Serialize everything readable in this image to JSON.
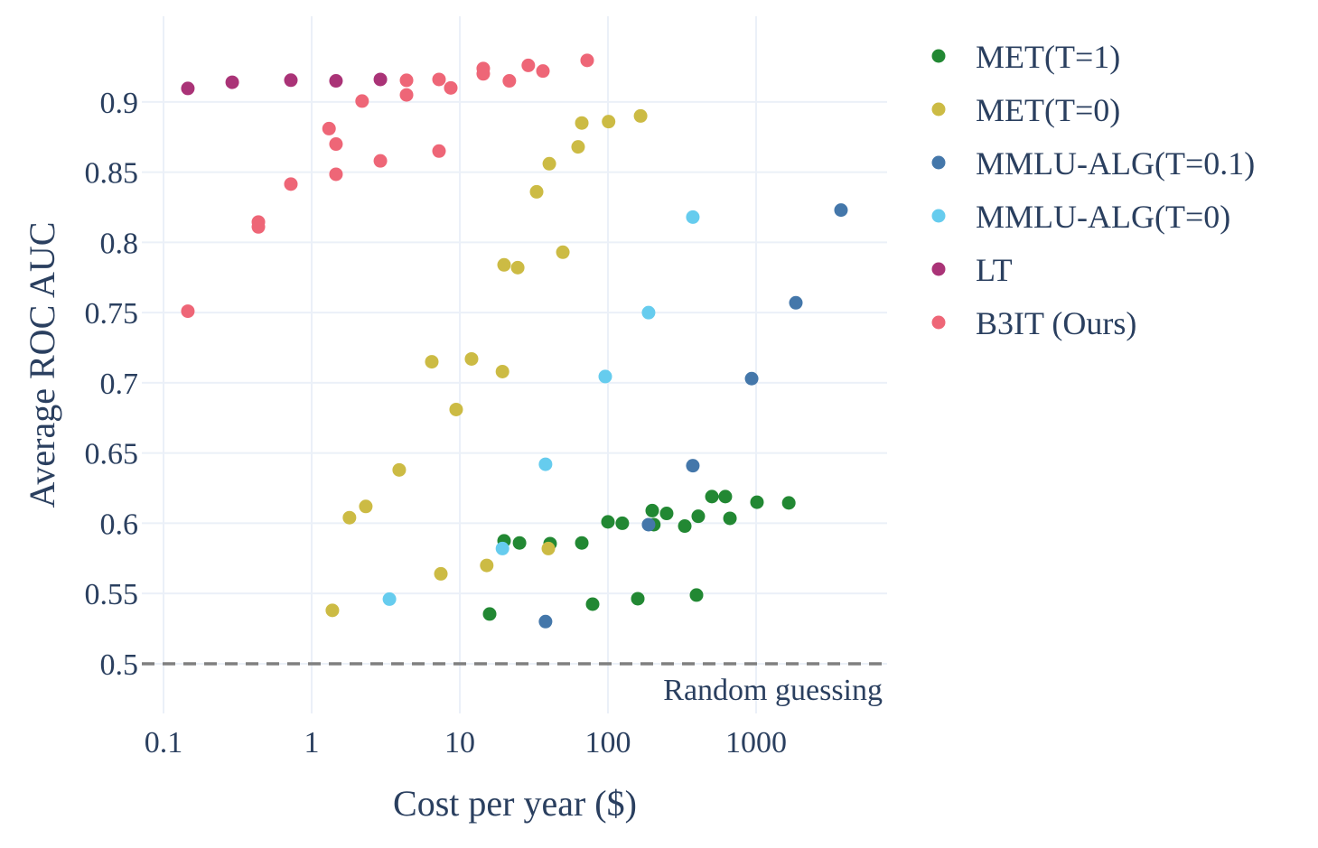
{
  "chart_data": {
    "type": "scatter",
    "title": "",
    "xlabel": "Cost per year ($)",
    "ylabel": "Average ROC AUC",
    "xscale": "log",
    "xlim": [
      0.0714,
      7660
    ],
    "ylim": [
      0.4646,
      0.961
    ],
    "x_ticks": [
      0.1,
      1,
      10,
      100,
      1000
    ],
    "x_tick_labels": [
      "0.1",
      "1",
      "10",
      "100",
      "1000"
    ],
    "y_ticks": [
      0.5,
      0.55,
      0.6,
      0.65,
      0.7,
      0.75,
      0.8,
      0.85,
      0.9
    ],
    "y_tick_labels": [
      "0.5",
      "0.55",
      "0.6",
      "0.65",
      "0.7",
      "0.75",
      "0.8",
      "0.85",
      "0.9"
    ],
    "grid": true,
    "legend_position": "right",
    "reference_line": {
      "y": 0.5,
      "style": "dashed",
      "color": "#808080",
      "label": "Random guessing"
    },
    "series": [
      {
        "name": "MET(T=1)",
        "color": "#228833",
        "x": [
          19.9,
          25.3,
          40.7,
          66.6,
          100,
          125,
          199,
          204,
          249,
          330,
          407,
          503,
          620,
          666,
          1014,
          1662,
          15.9,
          78.8,
          159,
          396
        ],
        "y": [
          0.5875,
          0.586,
          0.5855,
          0.586,
          0.601,
          0.6,
          0.609,
          0.599,
          0.607,
          0.598,
          0.605,
          0.619,
          0.619,
          0.6035,
          0.615,
          0.6145,
          0.5354,
          0.5424,
          0.5463,
          0.5489
        ]
      },
      {
        "name": "MET(T=0)",
        "color": "#CCBB44",
        "x": [
          1.38,
          1.8,
          2.32,
          3.9,
          6.47,
          7.45,
          9.45,
          12.0,
          15.2,
          19.4,
          19.9,
          24.6,
          33.0,
          39.6,
          40.2,
          49.6,
          62.9,
          66.6,
          101,
          166
        ],
        "y": [
          0.538,
          0.604,
          0.612,
          0.638,
          0.715,
          0.564,
          0.681,
          0.717,
          0.57,
          0.708,
          0.784,
          0.782,
          0.836,
          0.582,
          0.856,
          0.793,
          0.868,
          0.885,
          0.886,
          0.89
        ]
      },
      {
        "name": "MMLU-ALG(T=0.1)",
        "color": "#4477AA",
        "x": [
          37.9,
          188,
          374,
          933,
          1855,
          3742
        ],
        "y": [
          0.53,
          0.599,
          0.641,
          0.703,
          0.757,
          0.823
        ]
      },
      {
        "name": "MMLU-ALG(T=0)",
        "color": "#66CCEE",
        "x": [
          3.35,
          19.4,
          37.9,
          95.9,
          188,
          374
        ],
        "y": [
          0.546,
          0.582,
          0.642,
          0.7045,
          0.75,
          0.818
        ]
      },
      {
        "name": "LT",
        "color": "#AA3377",
        "x": [
          0.146,
          0.291,
          0.724,
          1.46,
          2.91
        ],
        "y": [
          0.9096,
          0.914,
          0.9155,
          0.915,
          0.916
        ]
      },
      {
        "name": "B3IT (Ours)",
        "color": "#EE6677",
        "x": [
          0.146,
          0.437,
          0.437,
          0.724,
          1.31,
          1.46,
          1.46,
          2.19,
          2.91,
          4.37,
          4.37,
          7.24,
          7.24,
          8.69,
          14.4,
          14.4,
          21.6,
          29.0,
          36.4,
          72.4
        ],
        "y": [
          0.751,
          0.8145,
          0.811,
          0.8415,
          0.881,
          0.87,
          0.8485,
          0.9006,
          0.858,
          0.9154,
          0.905,
          0.916,
          0.865,
          0.91,
          0.9238,
          0.92,
          0.915,
          0.926,
          0.922,
          0.9296
        ]
      }
    ]
  }
}
